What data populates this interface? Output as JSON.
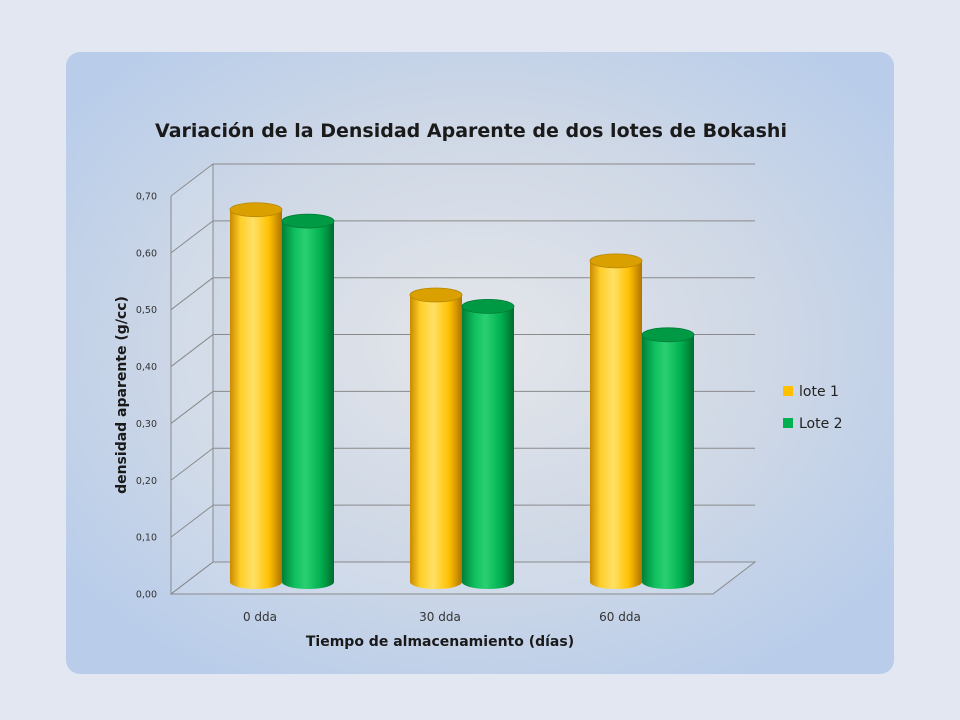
{
  "chart_data": {
    "type": "bar",
    "title": "Variación de la Densidad Aparente de dos lotes de Bokashi",
    "xlabel": "Tiempo de almacenamiento (días)",
    "ylabel": "densidad aparente (g/cc)",
    "categories": [
      "0 dda",
      "30 dda",
      "60 dda"
    ],
    "series": [
      {
        "name": "lote 1",
        "values": [
          0.68,
          0.53,
          0.59
        ],
        "color": "#FFC000"
      },
      {
        "name": "Lote 2",
        "values": [
          0.66,
          0.51,
          0.46
        ],
        "color": "#00B050"
      }
    ],
    "ylim": [
      0,
      0.7
    ],
    "yticks": [
      "0,00",
      "0,10",
      "0,20",
      "0,30",
      "0,40",
      "0,50",
      "0,60",
      "0,70"
    ],
    "grid": true,
    "legend_position": "right",
    "style": "3d-cylinder"
  }
}
